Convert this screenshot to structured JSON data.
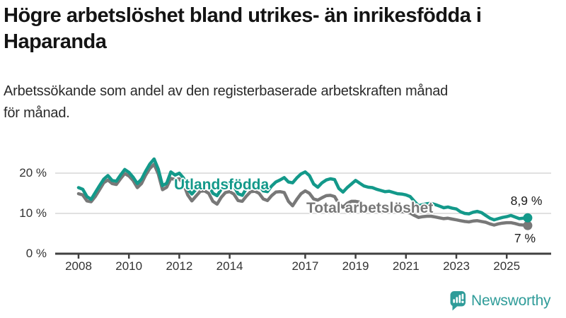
{
  "header": {
    "title_line1": "Högre arbetslöshet bland utrikes- än inrikesfödda i",
    "title_line2": "Haparanda",
    "subtitle_line1": "Arbetssökande som andel av den registerbaserade arbetskraften månad",
    "subtitle_line2": "för månad."
  },
  "colors": {
    "series_teal": "#13998a",
    "series_gray": "#787878",
    "logo_teal": "#2f9c99",
    "gridline": "#e1e1e1",
    "axis": "#404040"
  },
  "logo": {
    "label": "Newsworthy"
  },
  "chart_data": {
    "type": "line",
    "title": "Högre arbetslöshet bland utrikes- än inrikesfödda i Haparanda",
    "subtitle": "Arbetssökande som andel av den registerbaserade arbetskraften månad för månad.",
    "unit": "%",
    "ylim": [
      0,
      24
    ],
    "grid": "horizontal",
    "legend_position": "inline-labels",
    "yticks": [
      {
        "value": 0,
        "label": "0 %"
      },
      {
        "value": 10,
        "label": "10 %"
      },
      {
        "value": 20,
        "label": "20 %"
      }
    ],
    "xticks": [
      {
        "value": 2008,
        "label": "2008"
      },
      {
        "value": 2010,
        "label": "2010"
      },
      {
        "value": 2012,
        "label": "2012"
      },
      {
        "value": 2014,
        "label": "2014"
      },
      {
        "value": 2017,
        "label": "2017"
      },
      {
        "value": 2019,
        "label": "2019"
      },
      {
        "value": 2021,
        "label": "2021"
      },
      {
        "value": 2023,
        "label": "2023"
      },
      {
        "value": 2025,
        "label": "2025"
      }
    ],
    "x": [
      2008,
      2008.167,
      2008.333,
      2008.5,
      2008.667,
      2008.833,
      2009,
      2009.167,
      2009.333,
      2009.5,
      2009.667,
      2009.833,
      2010,
      2010.167,
      2010.333,
      2010.5,
      2010.667,
      2010.833,
      2011,
      2011.167,
      2011.333,
      2011.5,
      2011.667,
      2011.833,
      2012,
      2012.167,
      2012.333,
      2012.5,
      2012.667,
      2012.833,
      2013,
      2013.167,
      2013.333,
      2013.5,
      2013.667,
      2013.833,
      2014,
      2014.167,
      2014.333,
      2014.5,
      2014.667,
      2014.833,
      2015,
      2015.167,
      2015.333,
      2015.5,
      2015.667,
      2015.833,
      2016,
      2016.167,
      2016.333,
      2016.5,
      2016.667,
      2016.833,
      2017,
      2017.167,
      2017.333,
      2017.5,
      2017.667,
      2017.833,
      2018,
      2018.167,
      2018.333,
      2018.5,
      2018.667,
      2018.833,
      2019,
      2019.167,
      2019.333,
      2019.5,
      2019.667,
      2019.833,
      2020,
      2020.167,
      2020.333,
      2020.5,
      2020.667,
      2020.833,
      2021,
      2021.167,
      2021.333,
      2021.5,
      2021.667,
      2021.833,
      2022,
      2022.167,
      2022.333,
      2022.5,
      2022.667,
      2022.833,
      2023,
      2023.167,
      2023.333,
      2023.5,
      2023.667,
      2023.833,
      2024,
      2024.167,
      2024.333,
      2024.5,
      2024.667,
      2024.833,
      2025,
      2025.167,
      2025.333,
      2025.5,
      2025.667,
      2025.833
    ],
    "series": [
      {
        "name": "Utlandsfödda",
        "color": "#13998a",
        "end_label": "8,9 %",
        "end_value": 8.9,
        "values": [
          16.4,
          16.0,
          14.2,
          13.5,
          15.2,
          16.9,
          18.5,
          19.4,
          18.2,
          18.0,
          19.5,
          20.9,
          20.2,
          19.0,
          17.4,
          18.5,
          20.5,
          22.3,
          23.5,
          21.0,
          16.9,
          17.5,
          20.3,
          19.5,
          20.0,
          18.8,
          16.0,
          14.8,
          16.0,
          17.3,
          17.6,
          17.0,
          15.0,
          14.4,
          16.0,
          17.2,
          17.4,
          16.8,
          14.9,
          14.5,
          16.2,
          17.4,
          17.6,
          17.0,
          15.6,
          15.4,
          16.8,
          17.8,
          18.3,
          18.9,
          17.8,
          17.6,
          18.8,
          19.8,
          20.3,
          19.4,
          17.3,
          16.5,
          17.6,
          18.3,
          18.6,
          18.4,
          16.2,
          15.3,
          16.4,
          17.3,
          18.2,
          17.5,
          16.8,
          16.5,
          16.4,
          16.0,
          15.7,
          15.4,
          15.5,
          15.2,
          14.9,
          14.8,
          14.6,
          14.2,
          13.0,
          11.9,
          12.2,
          12.4,
          12.5,
          12.2,
          11.8,
          11.4,
          11.6,
          11.3,
          11.1,
          10.4,
          10.0,
          9.9,
          10.3,
          10.5,
          10.2,
          9.5,
          8.8,
          8.4,
          8.7,
          9.0,
          9.2,
          9.5,
          9.1,
          8.7,
          8.8,
          8.9
        ]
      },
      {
        "name": "Total arbetslöshet",
        "color": "#787878",
        "end_label": "7 %",
        "end_value": 7.0,
        "values": [
          14.9,
          14.6,
          13.1,
          12.9,
          14.2,
          15.9,
          17.6,
          18.3,
          17.4,
          17.2,
          18.6,
          19.9,
          19.3,
          18.2,
          16.4,
          17.4,
          19.5,
          21.2,
          22.2,
          19.8,
          15.9,
          16.5,
          18.7,
          18.4,
          18.6,
          17.4,
          14.6,
          13.1,
          14.3,
          15.5,
          15.6,
          15.0,
          13.0,
          12.3,
          14.0,
          15.2,
          15.4,
          14.8,
          13.2,
          13.0,
          14.3,
          15.4,
          15.5,
          15.0,
          13.6,
          13.2,
          14.4,
          15.3,
          15.4,
          15.2,
          13.0,
          11.9,
          13.5,
          14.9,
          15.6,
          15.0,
          13.6,
          13.3,
          13.9,
          14.4,
          14.5,
          14.2,
          12.4,
          11.5,
          12.5,
          13.0,
          13.0,
          12.8,
          11.8,
          11.3,
          11.9,
          11.8,
          11.6,
          11.4,
          11.3,
          11.0,
          10.8,
          10.5,
          10.3,
          10.1,
          9.5,
          9.0,
          9.2,
          9.3,
          9.3,
          9.1,
          8.9,
          8.7,
          8.8,
          8.6,
          8.4,
          8.2,
          8.0,
          7.9,
          8.1,
          8.2,
          8.0,
          7.8,
          7.4,
          7.1,
          7.4,
          7.6,
          7.7,
          7.7,
          7.5,
          7.2,
          7.1,
          7.0
        ]
      }
    ]
  }
}
